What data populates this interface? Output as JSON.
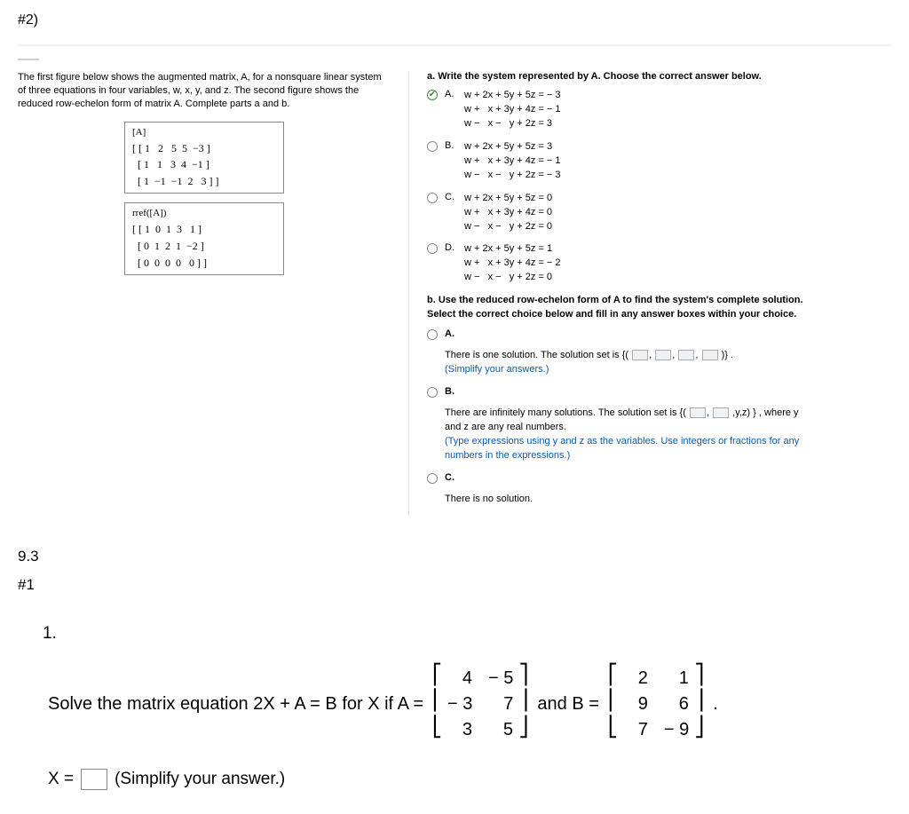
{
  "header_tag": "#2)",
  "intro": "The first figure below shows the augmented matrix, A, for a nonsquare linear system of three equations in four variables, w, x, y, and z. The second figure shows the reduced row-echelon form of matrix A. Complete parts a and b.",
  "matrixA": {
    "label": "[A]",
    "rows": [
      "[ [ 1   2   5  5  −3 ]",
      "  [ 1   1   3  4  −1 ]",
      "  [ 1  −1  −1  2   3 ] ]"
    ]
  },
  "rref": {
    "label": "rref([A])",
    "rows": [
      "[ [ 1  0  1  3   1 ]",
      "  [ 0  1  2  1  −2 ]",
      "  [ 0  0  0  0   0 ] ]"
    ]
  },
  "partA": {
    "prompt": "a. Write the system represented by A. Choose the correct answer below.",
    "options": [
      {
        "letter": "A.",
        "checked": true,
        "lines": [
          "w + 2x + 5y + 5z = − 3",
          "w +   x + 3y + 4z = − 1",
          "w −   x −   y + 2z = 3"
        ]
      },
      {
        "letter": "B.",
        "checked": false,
        "lines": [
          "w + 2x + 5y + 5z = 3",
          "w +   x + 3y + 4z = − 1",
          "w −   x −   y + 2z = − 3"
        ]
      },
      {
        "letter": "C.",
        "checked": false,
        "lines": [
          "w + 2x + 5y + 5z = 0",
          "w +   x + 3y + 4z = 0",
          "w −   x −   y + 2z = 0"
        ]
      },
      {
        "letter": "D.",
        "checked": false,
        "lines": [
          "w + 2x + 5y + 5z = 1",
          "w +   x + 3y + 4z = − 2",
          "w −   x −   y + 2z = 0"
        ]
      }
    ]
  },
  "partB": {
    "prompt": "b. Use the reduced row-echelon form of A to find the system's complete solution. Select the correct choice below and fill in any answer boxes within your choice.",
    "optA": {
      "letter": "A.",
      "text_before": "There is one solution. The solution set is ",
      "text_after": ".",
      "hint": "(Simplify your answers.)"
    },
    "optB": {
      "letter": "B.",
      "text_before": "There are infinitely many solutions. The solution set is ",
      "tuple_tail": ",y,z)",
      "text_after": ", where y and z are any real numbers.",
      "hint": "(Type expressions using y and z as the variables. Use integers or fractions for any numbers in the expressions.)"
    },
    "optC": {
      "letter": "C.",
      "text": "There is no solution."
    }
  },
  "section93": "9.3",
  "section_n1": "#1",
  "q1": {
    "num": "1.",
    "lead": "Solve the matrix equation 2X + A = B for X if A =",
    "mid": "and B =",
    "tail": ".",
    "A": [
      [
        "4",
        "− 5"
      ],
      [
        "− 3",
        "7"
      ],
      [
        "3",
        "5"
      ]
    ],
    "B": [
      [
        "2",
        "1"
      ],
      [
        "9",
        "6"
      ],
      [
        "7",
        "− 9"
      ]
    ],
    "answer_label": "X =",
    "answer_hint": "(Simplify your answer.)"
  }
}
